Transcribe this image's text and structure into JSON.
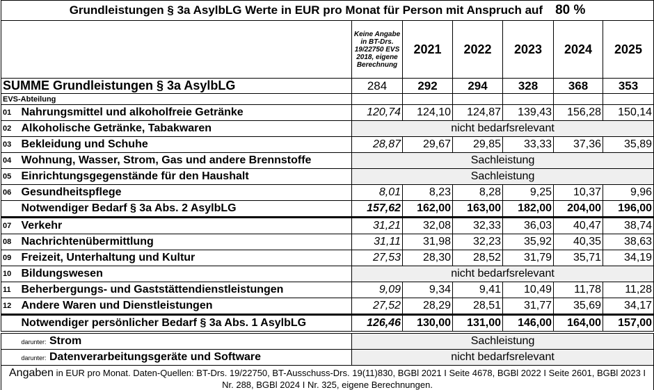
{
  "title": "Grundleistungen § 3a AsylbLG  Werte in EUR pro Monat für Person mit Anspruch auf",
  "percent": "80 %",
  "header": {
    "evs_note": "Keine Angabe in BT-Drs. 19/22750 EVS 2018, eigene Berechnung",
    "years": [
      "2021",
      "2022",
      "2023",
      "2024",
      "2025"
    ]
  },
  "summe": {
    "label": "SUMME Grundleistungen § 3a AsylbLG",
    "values": [
      "284",
      "292",
      "294",
      "328",
      "368",
      "353"
    ]
  },
  "evs_label": "EVS-Abteilung",
  "rows": [
    {
      "code": "01",
      "label": "Nahrungsmittel und alkoholfreie Getränke",
      "values": [
        "120,74",
        "124,10",
        "124,87",
        "139,43",
        "156,28",
        "150,14"
      ]
    },
    {
      "code": "02",
      "label": "Alkoholische Getränke, Tabakwaren",
      "merged": "nicht bedarfsrelevant"
    },
    {
      "code": "03",
      "label": "Bekleidung und Schuhe",
      "values": [
        "28,87",
        "29,67",
        "29,85",
        "33,33",
        "37,36",
        "35,89"
      ]
    },
    {
      "code": "04",
      "label": "Wohnung, Wasser, Strom, Gas und andere Brennstoffe",
      "merged": "Sachleistung"
    },
    {
      "code": "05",
      "label": "Einrichtungsgegenstände für den Haushalt",
      "merged": "Sachleistung"
    },
    {
      "code": "06",
      "label": "Gesundheitspflege",
      "values": [
        "8,01",
        "8,23",
        "8,28",
        "9,25",
        "10,37",
        "9,96"
      ]
    },
    {
      "code": "",
      "label": "Notwendiger Bedarf  § 3a Abs. 2 AsylbLG",
      "values": [
        "157,62",
        "162,00",
        "163,00",
        "182,00",
        "204,00",
        "196,00"
      ],
      "total": true
    },
    {
      "code": "07",
      "label": "Verkehr",
      "values": [
        "31,21",
        "32,08",
        "32,33",
        "36,03",
        "40,47",
        "38,74"
      ]
    },
    {
      "code": "08",
      "label": "Nachrichtenübermittlung",
      "values": [
        "31,11",
        "31,98",
        "32,23",
        "35,92",
        "40,35",
        "38,63"
      ]
    },
    {
      "code": "09",
      "label": "Freizeit, Unterhaltung und Kultur",
      "values": [
        "27,53",
        "28,30",
        "28,52",
        "31,79",
        "35,71",
        "34,19"
      ]
    },
    {
      "code": "10",
      "label": "Bildungswesen",
      "merged": "nicht bedarfsrelevant"
    },
    {
      "code": "11",
      "label": "Beherbergungs- und Gaststättendienstleistungen",
      "values": [
        "9,09",
        "9,34",
        "9,41",
        "10,49",
        "11,78",
        "11,28"
      ]
    },
    {
      "code": "12",
      "label": "Andere Waren und Dienstleistungen",
      "values": [
        "27,52",
        "28,29",
        "28,51",
        "31,77",
        "35,69",
        "34,17"
      ]
    },
    {
      "code": "",
      "label": "Notwendiger persönlicher Bedarf § 3a Abs. 1 AsylbLG",
      "values": [
        "126,46",
        "130,00",
        "131,00",
        "146,00",
        "164,00",
        "157,00"
      ],
      "total": true
    },
    {
      "code": "",
      "prefix": "darunter:",
      "label": "Strom",
      "merged": "Sachleistung"
    },
    {
      "code": "",
      "prefix": "darunter:",
      "label": "Datenverarbeitungsgeräte und Software",
      "merged": "nicht bedarfsrelevant"
    }
  ],
  "footer": {
    "lead": "Angaben",
    "text": " in EUR pro Monat. Daten-Quellen: BT-Drs. 19/22750, BT-Ausschuss-Drs. 19(11)830, BGBl 2021 I Seite 4678, BGBl 2022 I Seite 2601, BGBl 2023 I Nr. 288, BGBl 2024 I Nr. 325, eigene Berechnungen."
  }
}
